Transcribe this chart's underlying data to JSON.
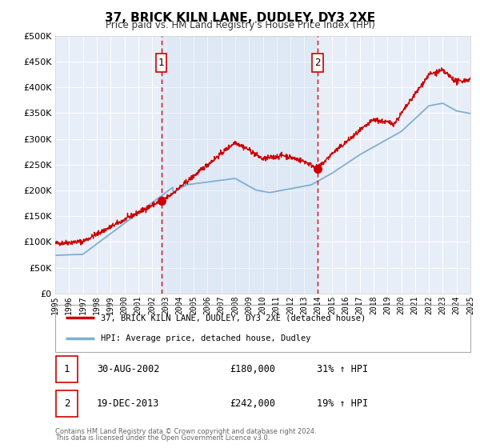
{
  "title": "37, BRICK KILN LANE, DUDLEY, DY3 2XE",
  "subtitle": "Price paid vs. HM Land Registry's House Price Index (HPI)",
  "bg_color": "#ffffff",
  "plot_bg_color": "#e8eef8",
  "grid_color": "#ffffff",
  "red_line_color": "#cc0000",
  "blue_line_color": "#7fafd4",
  "sale1_x": 2002.66,
  "sale1_y": 180000,
  "sale1_label": "1",
  "sale1_date": "30-AUG-2002",
  "sale1_price": "£180,000",
  "sale1_hpi": "31% ↑ HPI",
  "sale2_x": 2013.96,
  "sale2_y": 242000,
  "sale2_label": "2",
  "sale2_date": "19-DEC-2013",
  "sale2_price": "£242,000",
  "sale2_hpi": "19% ↑ HPI",
  "xmin": 1995,
  "xmax": 2025,
  "ymin": 0,
  "ymax": 500000,
  "yticks": [
    0,
    50000,
    100000,
    150000,
    200000,
    250000,
    300000,
    350000,
    400000,
    450000,
    500000
  ],
  "legend_line1": "37, BRICK KILN LANE, DUDLEY, DY3 2XE (detached house)",
  "legend_line2": "HPI: Average price, detached house, Dudley",
  "footer1": "Contains HM Land Registry data © Crown copyright and database right 2024.",
  "footer2": "This data is licensed under the Open Government Licence v3.0."
}
